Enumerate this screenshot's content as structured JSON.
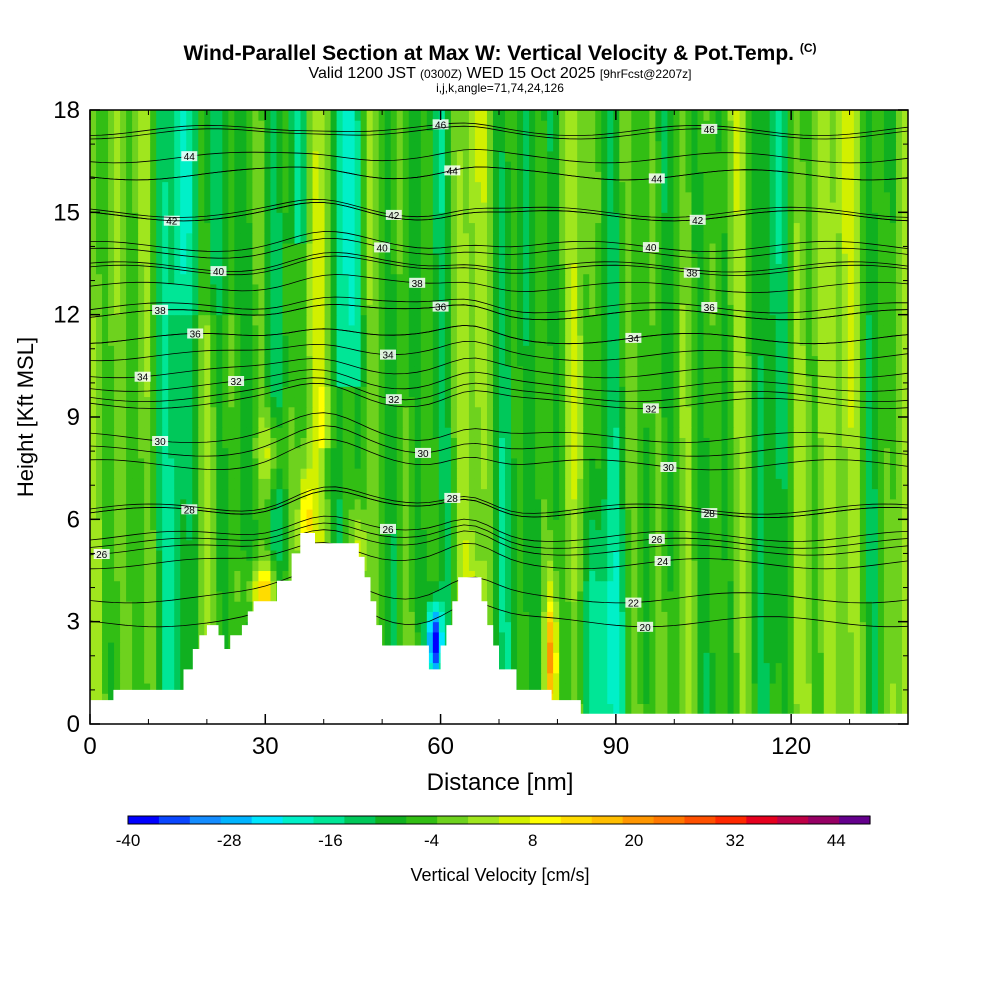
{
  "header": {
    "title": "Wind-Parallel Section at Max W: Vertical Velocity & Pot.Temp.",
    "copyright_mark": "(C)",
    "subtitle_valid": "Valid 1200 JST",
    "subtitle_utc": "(0300Z)",
    "subtitle_date": "WED 15 Oct 2025",
    "subtitle_fcst": "[9hrFcst@2207z]",
    "params": "i,j,k,angle=71,74,24,126"
  },
  "chart_data": {
    "type": "heatmap",
    "title": "Wind-Parallel Section at Max W: Vertical Velocity & Pot.Temp.",
    "xlabel": "Distance [nm]",
    "ylabel": "Height [Kft MSL]",
    "xlim": [
      0,
      140
    ],
    "ylim": [
      0,
      18
    ],
    "x_ticks": [
      0,
      30,
      60,
      90,
      120
    ],
    "y_ticks": [
      0,
      3,
      6,
      9,
      12,
      15,
      18
    ],
    "colorbar": {
      "label": "Vertical Velocity [cm/s]",
      "min": -40,
      "max": 48,
      "step": 4,
      "tick_labels": [
        "-40",
        "-28",
        "-16",
        "-4",
        "8",
        "20",
        "32",
        "44"
      ],
      "colors": [
        "#0000ff",
        "#0a46ff",
        "#148cff",
        "#00b4ff",
        "#00e6ff",
        "#00f0c8",
        "#00e696",
        "#00c85a",
        "#10b020",
        "#32be14",
        "#6ed21e",
        "#a0e61e",
        "#d2f000",
        "#ffff00",
        "#ffdc00",
        "#ffbe00",
        "#ff9600",
        "#ff7800",
        "#ff5000",
        "#ff2800",
        "#e6001e",
        "#be0046",
        "#960064",
        "#64008c"
      ]
    },
    "terrain_kft": [
      [
        0,
        0.7
      ],
      [
        4,
        0.7
      ],
      [
        4,
        1
      ],
      [
        16,
        1
      ],
      [
        16,
        1.6
      ],
      [
        17.6,
        1.6
      ],
      [
        17.6,
        2.2
      ],
      [
        18.7,
        2.2
      ],
      [
        18.7,
        2.6
      ],
      [
        20,
        2.6
      ],
      [
        20,
        2.9
      ],
      [
        22,
        2.9
      ],
      [
        22,
        2.6
      ],
      [
        23,
        2.6
      ],
      [
        23,
        2.2
      ],
      [
        24,
        2.2
      ],
      [
        24,
        2.6
      ],
      [
        26,
        2.6
      ],
      [
        26,
        2.9
      ],
      [
        27,
        2.9
      ],
      [
        27,
        3.3
      ],
      [
        28,
        3.3
      ],
      [
        28,
        3.6
      ],
      [
        32,
        3.6
      ],
      [
        32,
        4.2
      ],
      [
        34.5,
        4.2
      ],
      [
        34.5,
        5.0
      ],
      [
        36,
        5.0
      ],
      [
        36,
        5.6
      ],
      [
        38.5,
        5.6
      ],
      [
        38.5,
        5.3
      ],
      [
        46,
        5.3
      ],
      [
        46,
        4.9
      ],
      [
        47,
        4.9
      ],
      [
        47,
        4.3
      ],
      [
        48,
        4.3
      ],
      [
        48,
        3.6
      ],
      [
        49,
        3.6
      ],
      [
        49,
        2.9
      ],
      [
        50,
        2.9
      ],
      [
        50,
        2.3
      ],
      [
        58,
        2.3
      ],
      [
        58,
        1.6
      ],
      [
        60,
        1.6
      ],
      [
        60,
        2.3
      ],
      [
        61,
        2.3
      ],
      [
        61,
        2.9
      ],
      [
        62,
        2.9
      ],
      [
        62,
        3.6
      ],
      [
        63,
        3.6
      ],
      [
        63,
        4.3
      ],
      [
        67,
        4.3
      ],
      [
        67,
        3.6
      ],
      [
        68,
        3.6
      ],
      [
        68,
        2.9
      ],
      [
        69,
        2.9
      ],
      [
        69,
        2.3
      ],
      [
        70,
        2.3
      ],
      [
        70,
        1.6
      ],
      [
        73,
        1.6
      ],
      [
        73,
        1.0
      ],
      [
        79,
        1.0
      ],
      [
        79,
        0.7
      ],
      [
        84,
        0.7
      ],
      [
        84,
        0.3
      ],
      [
        140,
        0.3
      ]
    ],
    "theta_contours": [
      {
        "label": "20",
        "base_kft": 3.0,
        "label_x": 95
      },
      {
        "label": "22",
        "base_kft": 3.7,
        "label_x": 93
      },
      {
        "label": "24",
        "base_kft": 4.7,
        "label_x": 98
      },
      {
        "label": "26",
        "base_kft": 5.3,
        "label_x": 97
      },
      {
        "label": "26",
        "base_kft": 5.1,
        "label_x": 2
      },
      {
        "label": "26",
        "base_kft": 5.5,
        "label_x": 51
      },
      {
        "label": "28",
        "base_kft": 6.2,
        "label_x": 106
      },
      {
        "label": "28",
        "base_kft": 6.2,
        "label_x": 17
      },
      {
        "label": "28",
        "base_kft": 6.3,
        "label_x": 62
      },
      {
        "label": "30",
        "base_kft": 7.6,
        "label_x": 99
      },
      {
        "label": "30",
        "base_kft": 8.0,
        "label_x": 57
      },
      {
        "label": "30",
        "base_kft": 8.4,
        "label_x": 12
      },
      {
        "label": "32",
        "base_kft": 9.4,
        "label_x": 96
      },
      {
        "label": "32",
        "base_kft": 9.6,
        "label_x": 52
      },
      {
        "label": "32",
        "base_kft": 9.9,
        "label_x": 25
      },
      {
        "label": "34",
        "base_kft": 10.3,
        "label_x": 9
      },
      {
        "label": "34",
        "base_kft": 10.8,
        "label_x": 51
      },
      {
        "label": "34",
        "base_kft": 11.3,
        "label_x": 93
      },
      {
        "label": "36",
        "base_kft": 11.3,
        "label_x": 18
      },
      {
        "label": "36",
        "base_kft": 12.0,
        "label_x": 60
      },
      {
        "label": "36",
        "base_kft": 12.2,
        "label_x": 106
      },
      {
        "label": "38",
        "base_kft": 12.0,
        "label_x": 12
      },
      {
        "label": "38",
        "base_kft": 12.8,
        "label_x": 56
      },
      {
        "label": "38",
        "base_kft": 13.3,
        "label_x": 103
      },
      {
        "label": "40",
        "base_kft": 13.4,
        "label_x": 22
      },
      {
        "label": "40",
        "base_kft": 13.8,
        "label_x": 50
      },
      {
        "label": "40",
        "base_kft": 14.0,
        "label_x": 96
      },
      {
        "label": "42",
        "base_kft": 14.9,
        "label_x": 14
      },
      {
        "label": "42",
        "base_kft": 15.0,
        "label_x": 52
      },
      {
        "label": "42",
        "base_kft": 14.9,
        "label_x": 104
      },
      {
        "label": "44",
        "base_kft": 16.6,
        "label_x": 17
      },
      {
        "label": "44",
        "base_kft": 16.1,
        "label_x": 62
      },
      {
        "label": "44",
        "base_kft": 16.1,
        "label_x": 97
      },
      {
        "label": "46",
        "base_kft": 17.4,
        "label_x": 60
      },
      {
        "label": "46",
        "base_kft": 17.3,
        "label_x": 106
      }
    ]
  }
}
